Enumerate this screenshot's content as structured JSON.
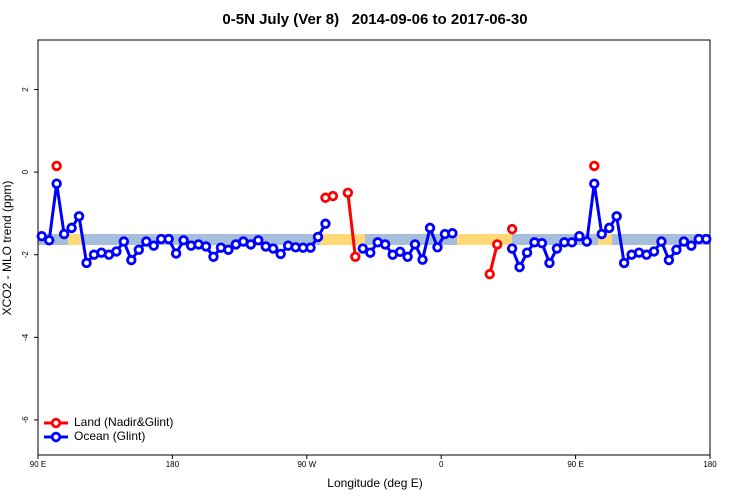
{
  "chart_data": {
    "type": "line",
    "title": "0-5N July (Ver 8)   2014-09-06 to 2017-06-30",
    "xlabel": "Longitude (deg E)",
    "ylabel": "XCO2 - MLO trend (ppm)",
    "xlim": [
      90,
      540
    ],
    "ylim": [
      -6.85,
      3.2
    ],
    "xticks": [
      {
        "value": 90,
        "label": "90 E"
      },
      180,
      {
        "value": 270,
        "label": "90 W"
      },
      {
        "value": 360,
        "label": "0"
      },
      {
        "value": 450,
        "label": "90 E"
      },
      {
        "value": 540,
        "label": "180"
      }
    ],
    "yticks": [
      -6,
      -4,
      -2,
      0,
      2
    ],
    "legend": "bottom-left",
    "x": [
      92.5,
      97.5,
      102.5,
      107.5,
      112.5,
      117.5,
      122.5,
      127.5,
      132.5,
      137.5,
      142.5,
      147.5,
      152.5,
      157.5,
      162.5,
      167.5,
      172.5,
      177.5,
      182.5,
      187.5,
      192.5,
      197.5,
      202.5,
      207.5,
      212.5,
      217.5,
      222.5,
      227.5,
      232.5,
      237.5,
      242.5,
      247.5,
      252.5,
      257.5,
      262.5,
      267.5,
      272.5,
      277.5,
      282.5,
      287.5,
      292.5,
      297.5,
      302.5,
      307.5,
      312.5,
      317.5,
      322.5,
      327.5,
      332.5,
      337.5,
      342.5,
      347.5,
      352.5,
      357.5,
      362.5,
      367.5,
      372.5,
      377.5,
      382.5,
      387.5,
      392.5,
      397.5,
      402.5,
      407.5,
      412.5,
      417.5,
      422.5,
      427.5,
      432.5,
      437.5,
      442.5,
      447.5,
      452.5,
      457.5,
      462.5,
      467.5,
      472.5,
      477.5,
      482.5,
      487.5,
      492.5,
      497.5,
      502.5,
      507.5,
      512.5,
      517.5,
      522.5,
      527.5,
      532.5,
      537.5
    ],
    "series": [
      {
        "name": "Land (Nadir&Glint)",
        "color": "#ff0000",
        "values": [
          null,
          null,
          0.15,
          null,
          null,
          null,
          null,
          null,
          null,
          null,
          null,
          null,
          null,
          null,
          null,
          null,
          null,
          null,
          null,
          null,
          null,
          null,
          null,
          null,
          null,
          null,
          null,
          null,
          null,
          null,
          null,
          null,
          null,
          null,
          null,
          null,
          null,
          null,
          -0.62,
          -0.58,
          null,
          -0.5,
          -2.05,
          null,
          null,
          null,
          null,
          null,
          null,
          null,
          null,
          null,
          null,
          null,
          null,
          null,
          null,
          null,
          null,
          null,
          -2.47,
          -1.75,
          null,
          -1.38,
          null,
          null,
          null,
          null,
          null,
          null,
          null,
          null,
          null,
          null,
          0.15,
          null,
          null,
          null,
          null,
          null,
          null,
          null,
          null,
          null,
          null,
          null,
          null,
          null,
          null,
          null
        ]
      },
      {
        "name": "Ocean (Glint)",
        "color": "#0000ff",
        "values": [
          -1.55,
          -1.65,
          -0.28,
          -1.5,
          -1.35,
          -1.07,
          -2.2,
          -2.0,
          -1.95,
          -2.0,
          -1.92,
          -1.68,
          -2.13,
          -1.88,
          -1.68,
          -1.78,
          -1.62,
          -1.62,
          -1.97,
          -1.65,
          -1.78,
          -1.75,
          -1.8,
          -2.05,
          -1.83,
          -1.88,
          -1.75,
          -1.68,
          -1.75,
          -1.65,
          -1.8,
          -1.85,
          -1.98,
          -1.78,
          -1.82,
          -1.83,
          -1.83,
          -1.57,
          -1.25,
          null,
          null,
          null,
          null,
          -1.85,
          -1.95,
          -1.7,
          -1.75,
          -2.0,
          -1.93,
          -2.05,
          -1.75,
          -2.12,
          -1.35,
          -1.82,
          -1.5,
          -1.48,
          null,
          null,
          null,
          null,
          null,
          null,
          null,
          -1.85,
          -2.3,
          -1.95,
          -1.7,
          -1.72,
          -2.2,
          -1.85,
          -1.7,
          -1.7,
          -1.55,
          -1.68,
          -0.28,
          -1.5,
          -1.35,
          -1.07,
          -2.2,
          -2.0,
          -1.95,
          -2.0,
          -1.92,
          -1.68,
          -2.13,
          -1.88,
          -1.68,
          -1.78,
          -1.62,
          -1.62
        ]
      }
    ]
  }
}
